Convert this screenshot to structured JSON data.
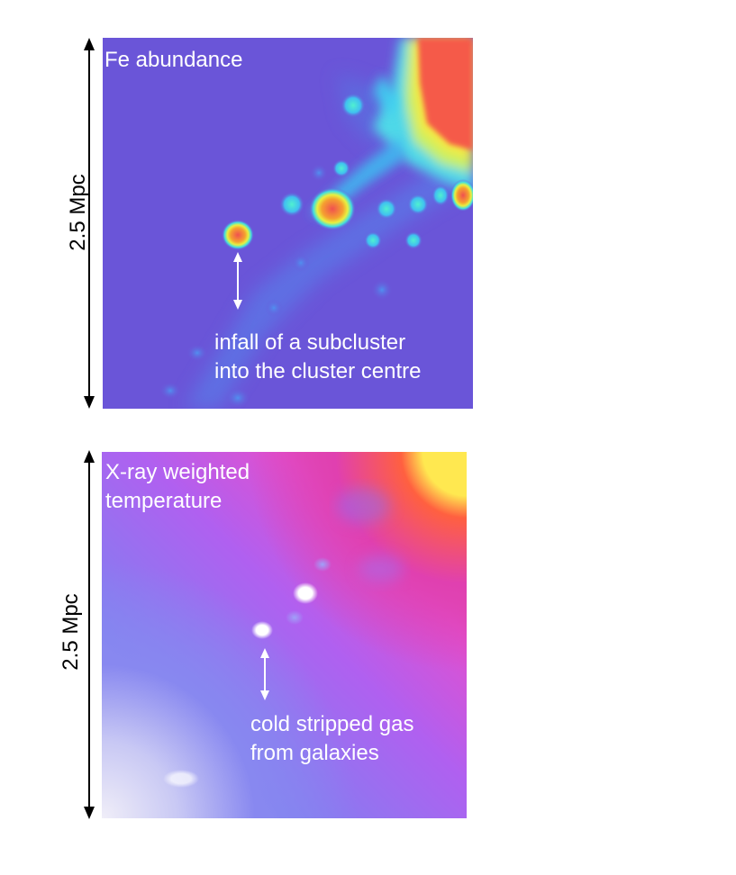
{
  "panels": {
    "fe": {
      "title": "Fe abundance",
      "scale_label": "2.5 Mpc",
      "annotation_line1": "infall of a subcluster",
      "annotation_line2": "into the cluster centre"
    },
    "temperature": {
      "title_line1": "X-ray weighted",
      "title_line2": "temperature",
      "scale_label": "2.5 Mpc",
      "annotation_line1": "cold stripped gas",
      "annotation_line2": "from galaxies"
    }
  },
  "colors": {
    "fe_background": "#6a55d8",
    "fe_hot": "#f55a4a",
    "temp_cold": "#e8e4f8",
    "temp_hot": "#ffe85a"
  }
}
